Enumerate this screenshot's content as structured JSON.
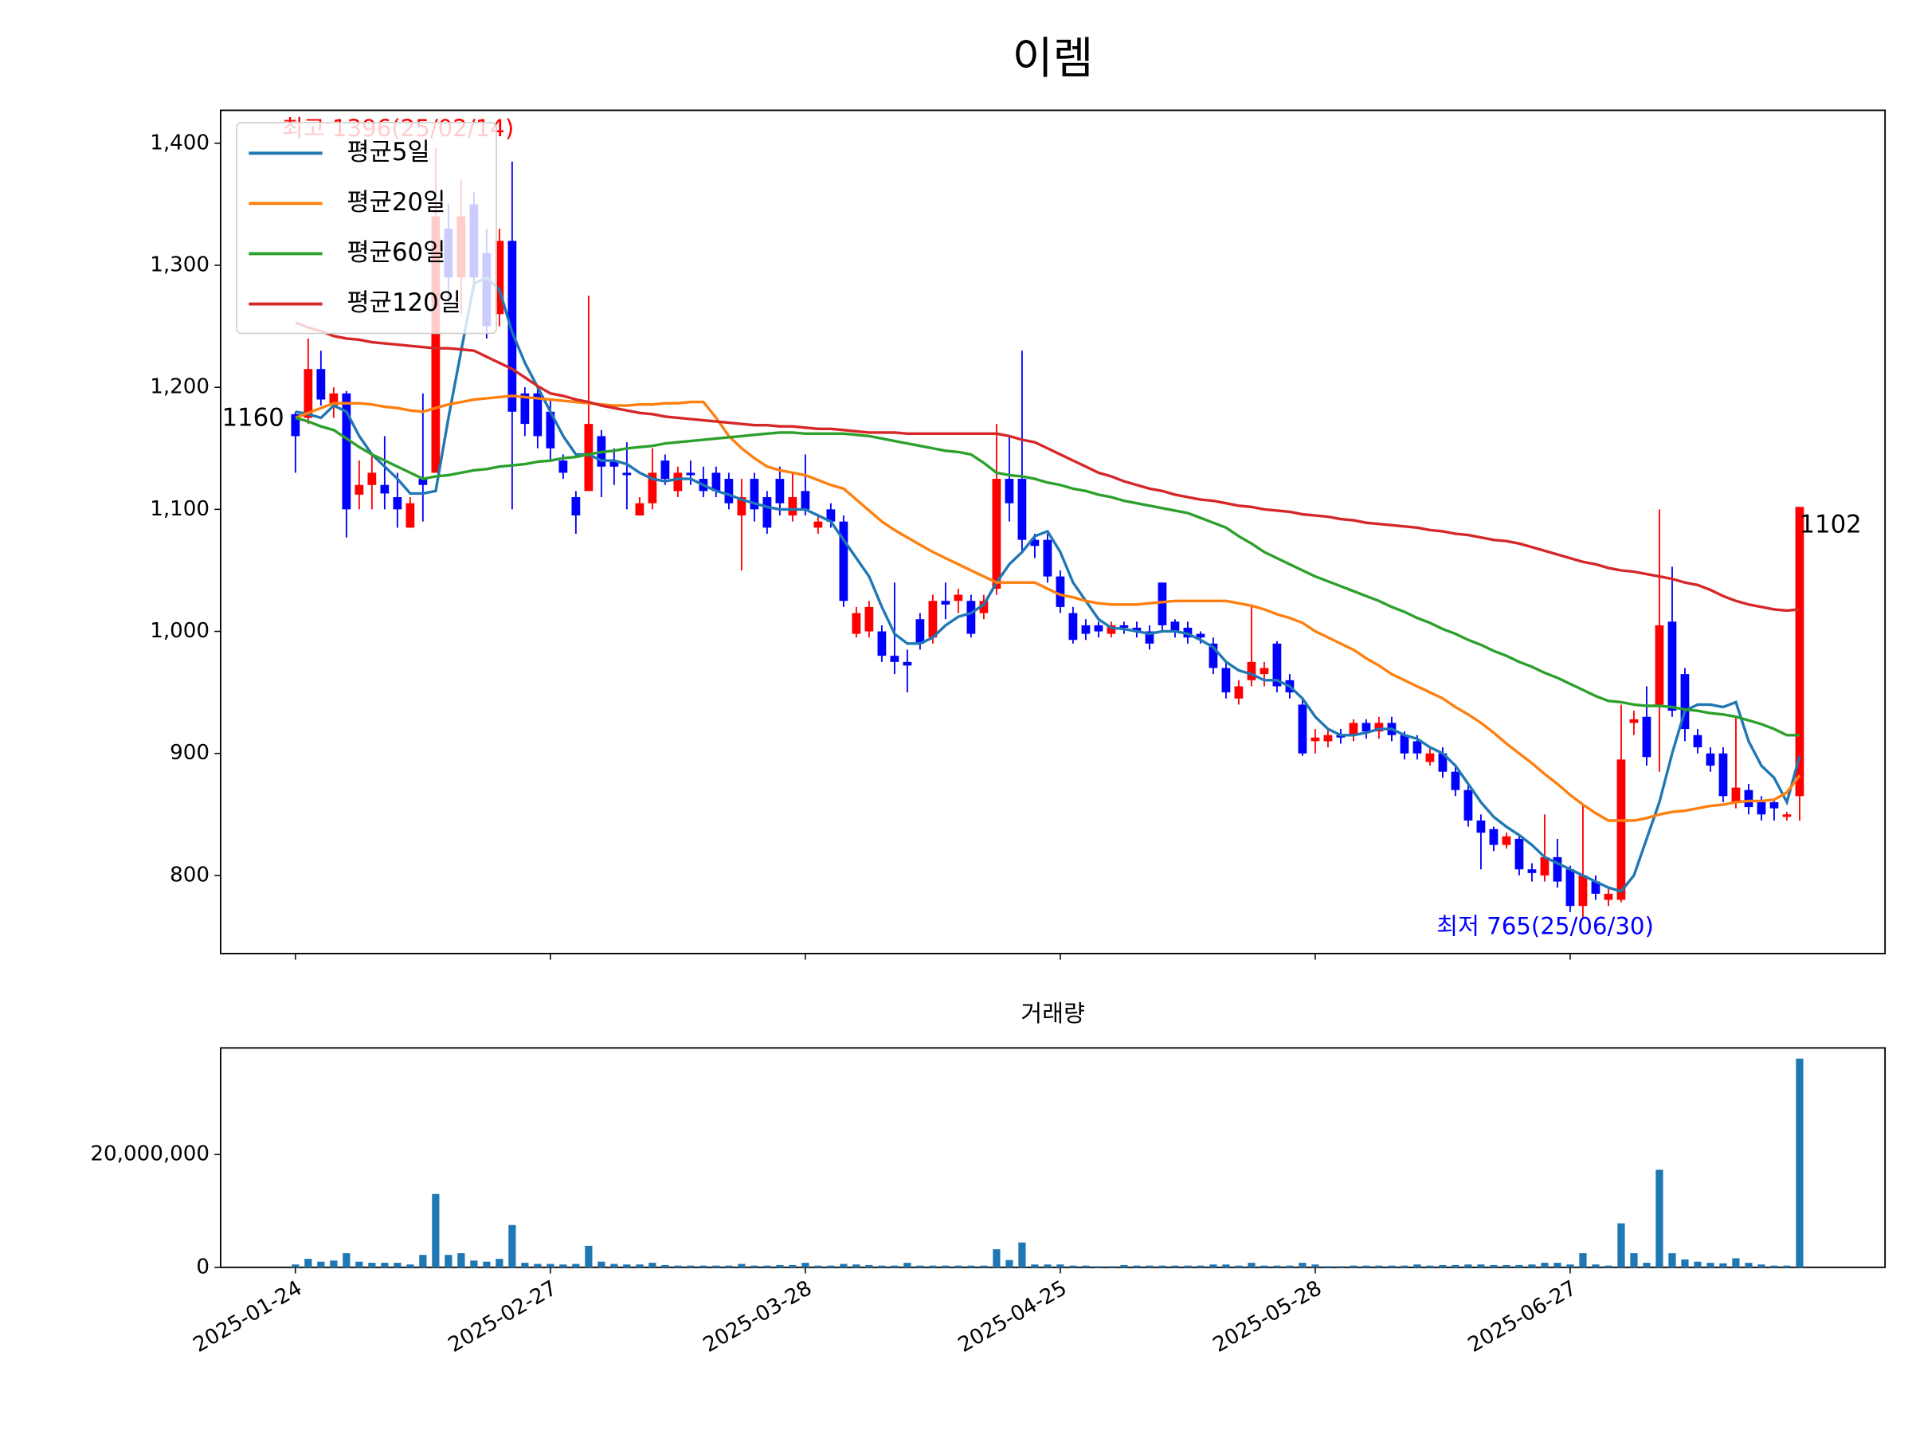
{
  "chart_data": [
    {
      "type": "candlestick",
      "title": "이렘",
      "open": [
        1178,
        1175,
        1215,
        1185,
        1195,
        1112,
        1120,
        1120,
        1110,
        1085,
        1125,
        1130,
        1330,
        1290,
        1350,
        1310,
        1260,
        1320,
        1195,
        1195,
        1180,
        1140,
        1110,
        1115,
        1160,
        1140,
        1130,
        1095,
        1105,
        1140,
        1115,
        1130,
        1125,
        1130,
        1125,
        1095,
        1125,
        1110,
        1125,
        1095,
        1115,
        1085,
        1100,
        1090,
        998,
        1000,
        1000,
        980,
        975,
        1010,
        995,
        1025,
        1025,
        1025,
        1015,
        1035,
        1125,
        1125,
        1075,
        1075,
        1045,
        1015,
        1005,
        1005,
        998,
        1005,
        1003,
        1000,
        1040,
        1008,
        1003,
        998,
        990,
        970,
        945,
        960,
        965,
        990,
        960,
        940,
        910,
        910,
        915,
        915,
        925,
        918,
        925,
        915,
        910,
        893,
        900,
        885,
        870,
        845,
        838,
        825,
        830,
        805,
        800,
        815,
        805,
        775,
        795,
        780,
        780,
        925,
        930,
        940,
        1008,
        965,
        915,
        900,
        900,
        860,
        870,
        860,
        860,
        848,
        865
      ],
      "high": [
        1180,
        1240,
        1230,
        1200,
        1197,
        1140,
        1145,
        1160,
        1130,
        1110,
        1195,
        1396,
        1350,
        1370,
        1360,
        1330,
        1330,
        1385,
        1200,
        1200,
        1190,
        1145,
        1115,
        1275,
        1165,
        1150,
        1155,
        1110,
        1150,
        1145,
        1135,
        1140,
        1135,
        1135,
        1130,
        1125,
        1130,
        1115,
        1135,
        1130,
        1145,
        1095,
        1105,
        1095,
        1020,
        1025,
        1005,
        1040,
        985,
        1015,
        1030,
        1040,
        1035,
        1030,
        1030,
        1170,
        1160,
        1230,
        1080,
        1080,
        1050,
        1020,
        1010,
        1008,
        1008,
        1008,
        1008,
        1005,
        1040,
        1010,
        1008,
        1000,
        995,
        975,
        960,
        1020,
        975,
        992,
        965,
        945,
        920,
        920,
        920,
        928,
        928,
        930,
        930,
        918,
        915,
        905,
        905,
        890,
        875,
        850,
        840,
        835,
        832,
        810,
        850,
        830,
        808,
        858,
        800,
        790,
        940,
        935,
        955,
        1100,
        1053,
        970,
        920,
        905,
        905,
        930,
        875,
        865,
        862,
        852,
        1102
      ],
      "low": [
        1130,
        1170,
        1185,
        1175,
        1077,
        1100,
        1100,
        1100,
        1085,
        1085,
        1090,
        1130,
        1270,
        1260,
        1280,
        1240,
        1250,
        1100,
        1160,
        1150,
        1140,
        1125,
        1080,
        1115,
        1110,
        1120,
        1100,
        1095,
        1100,
        1120,
        1110,
        1120,
        1110,
        1110,
        1100,
        1050,
        1090,
        1080,
        1095,
        1090,
        1095,
        1080,
        1085,
        1020,
        995,
        995,
        975,
        965,
        950,
        985,
        990,
        1010,
        1015,
        995,
        1010,
        1030,
        1090,
        1065,
        1060,
        1040,
        1015,
        990,
        993,
        995,
        995,
        998,
        995,
        985,
        1000,
        995,
        990,
        990,
        965,
        945,
        940,
        955,
        955,
        950,
        945,
        898,
        900,
        905,
        908,
        910,
        912,
        912,
        910,
        895,
        895,
        890,
        880,
        865,
        840,
        805,
        820,
        822,
        800,
        795,
        795,
        790,
        770,
        765,
        780,
        775,
        778,
        915,
        890,
        885,
        930,
        910,
        900,
        885,
        860,
        855,
        850,
        845,
        845,
        845,
        845
      ],
      "close": [
        1160,
        1215,
        1190,
        1195,
        1100,
        1120,
        1130,
        1113,
        1100,
        1105,
        1120,
        1340,
        1290,
        1340,
        1290,
        1250,
        1320,
        1180,
        1170,
        1160,
        1150,
        1130,
        1095,
        1170,
        1135,
        1135,
        1128,
        1105,
        1130,
        1125,
        1130,
        1128,
        1115,
        1115,
        1105,
        1110,
        1100,
        1085,
        1105,
        1110,
        1100,
        1090,
        1090,
        1025,
        1015,
        1020,
        980,
        975,
        972,
        990,
        1025,
        1022,
        1030,
        998,
        1025,
        1125,
        1105,
        1075,
        1070,
        1045,
        1020,
        993,
        998,
        1000,
        1005,
        1003,
        1000,
        990,
        1005,
        1000,
        995,
        995,
        970,
        950,
        955,
        975,
        970,
        955,
        950,
        900,
        913,
        915,
        913,
        925,
        918,
        925,
        915,
        900,
        900,
        900,
        885,
        870,
        845,
        835,
        825,
        832,
        805,
        802,
        815,
        795,
        775,
        800,
        785,
        785,
        895,
        928,
        897,
        1005,
        935,
        920,
        905,
        890,
        865,
        872,
        856,
        850,
        855,
        850,
        1102
      ],
      "up_color": "#ff0000",
      "down_color": "#0000ff",
      "series": [
        {
          "name": "평균5일",
          "color": "#1f77b4",
          "values": [
            1180,
            1178,
            1175,
            1185,
            1180,
            1160,
            1145,
            1135,
            1125,
            1113,
            1113,
            1115,
            1175,
            1230,
            1285,
            1290,
            1280,
            1245,
            1220,
            1200,
            1180,
            1160,
            1145,
            1145,
            1140,
            1140,
            1137,
            1130,
            1125,
            1123,
            1125,
            1125,
            1120,
            1115,
            1112,
            1108,
            1105,
            1102,
            1100,
            1100,
            1100,
            1095,
            1090,
            1075,
            1060,
            1045,
            1020,
            998,
            990,
            990,
            995,
            1005,
            1012,
            1015,
            1022,
            1040,
            1055,
            1065,
            1078,
            1082,
            1065,
            1040,
            1025,
            1010,
            1003,
            1002,
            1000,
            998,
            1000,
            1000,
            998,
            993,
            987,
            975,
            968,
            965,
            960,
            960,
            955,
            945,
            930,
            920,
            915,
            915,
            917,
            920,
            920,
            915,
            912,
            905,
            900,
            890,
            875,
            860,
            848,
            840,
            833,
            825,
            815,
            810,
            805,
            800,
            795,
            790,
            787,
            800,
            830,
            860,
            900,
            935,
            940,
            940,
            938,
            942,
            910,
            890,
            880,
            860,
            898
          ]
        },
        {
          "name": "평균20일",
          "color": "#ff7f0e",
          "values": [
            1175,
            1179,
            1183,
            1187,
            1187,
            1187,
            1186,
            1184,
            1183,
            1181,
            1180,
            1183,
            1186,
            1188,
            1190,
            1191,
            1192,
            1193,
            1192,
            1191,
            1190,
            1189,
            1188,
            1187,
            1186,
            1185,
            1185,
            1186,
            1186,
            1187,
            1187,
            1188,
            1188,
            1175,
            1160,
            1150,
            1142,
            1135,
            1132,
            1130,
            1128,
            1124,
            1120,
            1117,
            1108,
            1099,
            1090,
            1083,
            1077,
            1071,
            1065,
            1060,
            1055,
            1050,
            1045,
            1040,
            1040,
            1040,
            1040,
            1035,
            1030,
            1028,
            1025,
            1023,
            1022,
            1022,
            1022,
            1023,
            1024,
            1025,
            1025,
            1025,
            1025,
            1025,
            1023,
            1021,
            1018,
            1014,
            1011,
            1007,
            1000,
            995,
            990,
            985,
            978,
            972,
            965,
            960,
            955,
            950,
            945,
            938,
            932,
            925,
            917,
            908,
            900,
            892,
            883,
            875,
            866,
            858,
            851,
            845,
            845,
            845,
            847,
            850,
            852,
            853,
            855,
            857,
            858,
            860,
            861,
            861,
            862,
            868,
            882
          ]
        },
        {
          "name": "평균60일",
          "color": "#2ca02c",
          "values": [
            1175,
            1172,
            1168,
            1165,
            1158,
            1151,
            1145,
            1140,
            1135,
            1130,
            1125,
            1127,
            1128,
            1130,
            1132,
            1133,
            1135,
            1136,
            1137,
            1139,
            1140,
            1142,
            1143,
            1145,
            1147,
            1148,
            1150,
            1151,
            1152,
            1154,
            1155,
            1156,
            1157,
            1158,
            1159,
            1160,
            1161,
            1162,
            1163,
            1163,
            1162,
            1162,
            1162,
            1162,
            1161,
            1160,
            1158,
            1156,
            1154,
            1152,
            1150,
            1148,
            1147,
            1145,
            1138,
            1130,
            1128,
            1127,
            1125,
            1122,
            1120,
            1117,
            1115,
            1112,
            1110,
            1107,
            1105,
            1103,
            1101,
            1099,
            1097,
            1093,
            1089,
            1085,
            1078,
            1072,
            1065,
            1060,
            1055,
            1050,
            1045,
            1041,
            1037,
            1033,
            1029,
            1025,
            1020,
            1016,
            1011,
            1007,
            1002,
            998,
            993,
            989,
            984,
            980,
            975,
            971,
            966,
            962,
            957,
            952,
            947,
            943,
            942,
            940,
            939,
            939,
            938,
            936,
            935,
            933,
            932,
            930,
            927,
            924,
            920,
            915,
            915
          ]
        },
        {
          "name": "평균120일",
          "color": "#d62728",
          "values": [
            1253,
            1249,
            1246,
            1242,
            1240,
            1239,
            1237,
            1236,
            1235,
            1234,
            1233,
            1232,
            1232,
            1231,
            1230,
            1225,
            1220,
            1215,
            1208,
            1201,
            1195,
            1193,
            1190,
            1188,
            1185,
            1183,
            1181,
            1179,
            1178,
            1176,
            1175,
            1174,
            1173,
            1172,
            1171,
            1170,
            1169,
            1169,
            1168,
            1168,
            1167,
            1166,
            1166,
            1165,
            1164,
            1163,
            1163,
            1163,
            1162,
            1162,
            1162,
            1162,
            1162,
            1162,
            1162,
            1162,
            1160,
            1157,
            1155,
            1150,
            1145,
            1140,
            1135,
            1130,
            1127,
            1123,
            1120,
            1117,
            1115,
            1112,
            1110,
            1108,
            1107,
            1105,
            1103,
            1102,
            1100,
            1099,
            1098,
            1096,
            1095,
            1094,
            1092,
            1091,
            1089,
            1088,
            1087,
            1086,
            1085,
            1083,
            1082,
            1080,
            1079,
            1077,
            1075,
            1074,
            1072,
            1069,
            1066,
            1063,
            1060,
            1057,
            1055,
            1052,
            1050,
            1049,
            1047,
            1045,
            1043,
            1040,
            1038,
            1034,
            1029,
            1025,
            1022,
            1020,
            1018,
            1017,
            1018
          ]
        }
      ],
      "annotations": [
        {
          "text": "최고 1396(25/02/14)",
          "color": "#ff0000"
        },
        {
          "text": "최저 765(25/06/30)",
          "color": "#0000ff"
        }
      ],
      "legend": "upper left",
      "xlim": [
        -5.87,
        124.7
      ],
      "ylim": [
        736,
        1427
      ],
      "yticks": [
        800,
        900,
        {
          "value": 1000,
          "label": "1,000"
        },
        {
          "value": 1100,
          "label": "1,100"
        },
        {
          "value": 1200,
          "label": "1,200"
        },
        {
          "value": 1300,
          "label": "1,300"
        },
        {
          "value": 1400,
          "label": "1,400"
        }
      ]
    },
    {
      "type": "bar",
      "title": "거래량",
      "color": "#1f77b4",
      "values": [
        500000,
        1500000,
        1000000,
        1200000,
        2500000,
        1000000,
        800000,
        800000,
        800000,
        500000,
        2200000,
        13000000,
        2200000,
        2500000,
        1200000,
        1000000,
        1500000,
        7500000,
        800000,
        600000,
        600000,
        500000,
        600000,
        3800000,
        1000000,
        600000,
        500000,
        500000,
        800000,
        400000,
        300000,
        300000,
        300000,
        300000,
        300000,
        600000,
        300000,
        300000,
        400000,
        400000,
        800000,
        300000,
        300000,
        600000,
        500000,
        400000,
        300000,
        300000,
        800000,
        300000,
        300000,
        300000,
        300000,
        300000,
        300000,
        3200000,
        1300000,
        4400000,
        500000,
        500000,
        500000,
        300000,
        300000,
        200000,
        200000,
        400000,
        300000,
        300000,
        300000,
        300000,
        300000,
        300000,
        500000,
        500000,
        300000,
        800000,
        300000,
        300000,
        300000,
        800000,
        500000,
        200000,
        200000,
        300000,
        300000,
        300000,
        300000,
        300000,
        500000,
        300000,
        400000,
        400000,
        500000,
        500000,
        400000,
        400000,
        400000,
        500000,
        800000,
        800000,
        500000,
        2500000,
        500000,
        300000,
        7800000,
        2500000,
        800000,
        17300000,
        2500000,
        1400000,
        1000000,
        800000,
        700000,
        1600000,
        800000,
        500000,
        300000,
        300000,
        37000000
      ],
      "xlim": [
        -5.87,
        124.7
      ],
      "xticks": [
        {
          "value": 0,
          "label": "2025-01-24"
        },
        {
          "value": 20,
          "label": "2025-02-27"
        },
        {
          "value": 40,
          "label": "2025-03-28"
        },
        {
          "value": 60,
          "label": "2025-04-25"
        },
        {
          "value": 80,
          "label": "2025-05-28"
        },
        {
          "value": 100,
          "label": "2025-06-27"
        }
      ],
      "ylim": [
        0,
        38900000
      ],
      "yticks": [
        0,
        {
          "value": 20000000,
          "label": "20,000,000"
        }
      ]
    }
  ]
}
